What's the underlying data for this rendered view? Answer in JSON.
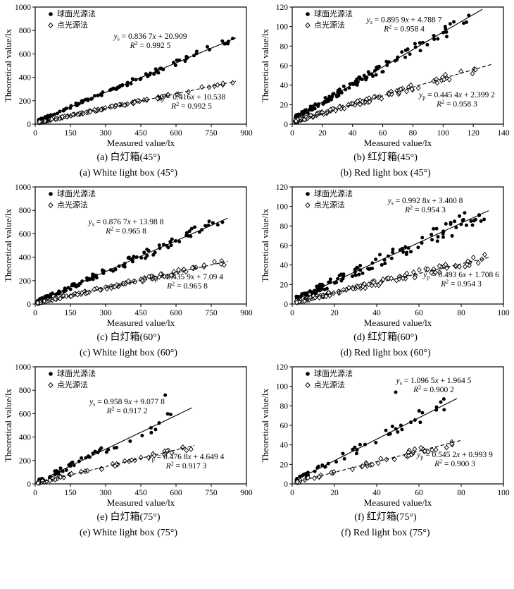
{
  "figure": {
    "xlabel": "Measured value/lx",
    "ylabel": "Theoretical value/lx",
    "legend": [
      {
        "marker": "circle-filled",
        "label": "球面光源法"
      },
      {
        "marker": "diamond-open",
        "label": "点光源法"
      }
    ],
    "colors": {
      "fg": "#000000",
      "bg": "#ffffff"
    }
  },
  "chart_data": [
    {
      "id": "a",
      "type": "scatter",
      "caption_cn": "(a) 白灯箱(45°)",
      "caption_en": "(a) White light box (45°)",
      "xlabel": "Measured value/lx",
      "ylabel": "Theoretical value/lx",
      "xlim": [
        0,
        900
      ],
      "xticks": [
        0,
        150,
        300,
        450,
        600,
        750,
        900
      ],
      "ylim": [
        0,
        1000
      ],
      "yticks": [
        0,
        200,
        400,
        600,
        800,
        1000
      ],
      "series": [
        {
          "name": "球面光源法",
          "marker": "circle",
          "line": "solid",
          "fit_slope": 0.8367,
          "fit_intercept": 20.909,
          "r2": 0.9925,
          "eq": {
            "sub": "s",
            "slope": "0.836 7",
            "intercept": "20.909",
            "r2": "0.992 5",
            "fx": 0.545,
            "fy": 0.27
          },
          "line_range": [
            28,
            855
          ],
          "sim": {
            "seed": 11,
            "n": 110,
            "xmin": 15,
            "xmax": 845,
            "pow": 1.7,
            "noise": 30
          }
        },
        {
          "name": "点光源法",
          "marker": "diamond",
          "line": "dashed",
          "fit_slope": 0.416,
          "fit_intercept": 10.538,
          "r2": 0.9925,
          "eq": {
            "sub": "p",
            "slope": "0.416",
            "intercept": "10.538",
            "r2": "0.992 5",
            "fx": 0.74,
            "fy": 0.79
          },
          "line_range": [
            28,
            855
          ],
          "sim": {
            "seed": 12,
            "n": 110,
            "xmin": 15,
            "xmax": 845,
            "pow": 1.7,
            "noise": 14
          }
        }
      ]
    },
    {
      "id": "b",
      "type": "scatter",
      "caption_cn": "(b) 红灯箱(45°)",
      "caption_en": "(b) Red light box (45°)",
      "xlabel": "Measured value/lx",
      "ylabel": "Theoretical value/lx",
      "xlim": [
        0,
        140
      ],
      "xticks": [
        0,
        20,
        40,
        60,
        80,
        100,
        120,
        140
      ],
      "ylim": [
        0,
        120
      ],
      "yticks": [
        0,
        20,
        40,
        60,
        80,
        100,
        120
      ],
      "series": [
        {
          "name": "球面光源法",
          "marker": "circle",
          "line": "solid",
          "fit_slope": 0.8959,
          "fit_intercept": 4.7887,
          "r2": 0.9584,
          "eq": {
            "sub": "s",
            "slope": "0.895 9",
            "intercept": "4.788 7",
            "r2": "0.958 4",
            "fx": 0.53,
            "fy": 0.13
          },
          "line_range": [
            6,
            126
          ],
          "sim": {
            "seed": 21,
            "n": 130,
            "xmin": 2,
            "xmax": 122,
            "pow": 1.9,
            "noise": 8
          }
        },
        {
          "name": "点光源法",
          "marker": "diamond",
          "line": "dashed",
          "fit_slope": 0.4454,
          "fit_intercept": 2.3992,
          "r2": 0.9583,
          "eq": {
            "sub": "p",
            "slope": "0.445 4",
            "intercept": "2.399 2",
            "r2": "0.958 3",
            "fx": 0.78,
            "fy": 0.77
          },
          "line_range": [
            4,
            132
          ],
          "sim": {
            "seed": 22,
            "n": 130,
            "xmin": 2,
            "xmax": 122,
            "pow": 1.9,
            "noise": 4.5
          }
        }
      ]
    },
    {
      "id": "c",
      "type": "scatter",
      "caption_cn": "(c) 白灯箱(60°)",
      "caption_en": "(c) White light box (60°)",
      "xlabel": "Measured value/lx",
      "ylabel": "Theoretical value/lx",
      "xlim": [
        0,
        900
      ],
      "xticks": [
        0,
        150,
        300,
        450,
        600,
        750,
        900
      ],
      "ylim": [
        0,
        1000
      ],
      "yticks": [
        0,
        200,
        400,
        600,
        800,
        1000
      ],
      "series": [
        {
          "name": "球面光源法",
          "marker": "circle",
          "line": "solid",
          "fit_slope": 0.8767,
          "fit_intercept": 13.988,
          "r2": 0.9658,
          "eq": {
            "sub": "s",
            "slope": "0.876 7",
            "intercept": "13.98 8",
            "r2": "0.965 8",
            "fx": 0.43,
            "fy": 0.32
          },
          "line_range": [
            18,
            820
          ],
          "sim": {
            "seed": 31,
            "n": 115,
            "xmin": 10,
            "xmax": 815,
            "pow": 1.7,
            "noise": 55
          }
        },
        {
          "name": "点光源法",
          "marker": "diamond",
          "line": "dashed",
          "fit_slope": 0.4359,
          "fit_intercept": 7.094,
          "r2": 0.9658,
          "eq": {
            "sub": "p",
            "slope": "0.435 9",
            "intercept": "7.09 4",
            "r2": "0.965 8",
            "fx": 0.72,
            "fy": 0.79
          },
          "line_range": [
            18,
            820
          ],
          "sim": {
            "seed": 32,
            "n": 115,
            "xmin": 10,
            "xmax": 815,
            "pow": 1.7,
            "noise": 25
          }
        }
      ]
    },
    {
      "id": "d",
      "type": "scatter",
      "caption_cn": "(d) 红灯箱(60°)",
      "caption_en": "(d) Red light box (60°)",
      "xlabel": "Measured value/lx",
      "ylabel": "Theoretical value/lx",
      "xlim": [
        0,
        100
      ],
      "xticks": [
        0,
        20,
        40,
        60,
        80,
        100
      ],
      "ylim": [
        0,
        120
      ],
      "yticks": [
        0,
        20,
        40,
        60,
        80,
        100,
        120
      ],
      "series": [
        {
          "name": "球面光源法",
          "marker": "circle",
          "line": "solid",
          "fit_slope": 0.9928,
          "fit_intercept": 3.4008,
          "r2": 0.9543,
          "eq": {
            "sub": "s",
            "slope": "0.992 8",
            "intercept": "3.400 8",
            "r2": "0.954 3",
            "fx": 0.63,
            "fy": 0.14
          },
          "line_range": [
            3,
            93
          ],
          "sim": {
            "seed": 41,
            "n": 120,
            "xmin": 2,
            "xmax": 92,
            "pow": 1.6,
            "noise": 11
          }
        },
        {
          "name": "点光源法",
          "marker": "diamond",
          "line": "dashed",
          "fit_slope": 0.4936,
          "fit_intercept": 1.7086,
          "r2": 0.9543,
          "eq": {
            "sub": "p",
            "slope": "0.493 6",
            "intercept": "1.708 6",
            "r2": "0.954 3",
            "fx": 0.8,
            "fy": 0.77
          },
          "line_range": [
            3,
            93
          ],
          "sim": {
            "seed": 42,
            "n": 120,
            "xmin": 2,
            "xmax": 92,
            "pow": 1.6,
            "noise": 5
          }
        }
      ]
    },
    {
      "id": "e",
      "type": "scatter",
      "caption_cn": "(e) 白灯箱(75°)",
      "caption_en": "(e) White light box (75°)",
      "xlabel": "Measured value/lx",
      "ylabel": "Theoretical value/lx",
      "xlim": [
        0,
        900
      ],
      "xticks": [
        0,
        150,
        300,
        450,
        600,
        750,
        900
      ],
      "ylim": [
        0,
        1000
      ],
      "yticks": [
        0,
        200,
        400,
        600,
        800,
        1000
      ],
      "series": [
        {
          "name": "球面光源法",
          "marker": "circle",
          "line": "solid",
          "fit_slope": 0.9589,
          "fit_intercept": 9.0778,
          "r2": 0.9172,
          "eq": {
            "sub": "s",
            "slope": "0.958 9",
            "intercept": "9.077 8",
            "r2": "0.917 2",
            "fx": 0.435,
            "fy": 0.32
          },
          "line_range": [
            55,
            668
          ],
          "extra": [
            [
              554,
              758
            ]
          ],
          "sim": {
            "seed": 51,
            "n": 52,
            "xmin": 12,
            "xmax": 660,
            "pow": 1.9,
            "noise": 58
          }
        },
        {
          "name": "点光源法",
          "marker": "diamond",
          "line": "dashed",
          "fit_slope": 0.4768,
          "fit_intercept": 4.6494,
          "r2": 0.9173,
          "eq": {
            "sub": "p",
            "slope": "0.476 8",
            "intercept": "4.649 4",
            "r2": "0.917 3",
            "fx": 0.715,
            "fy": 0.79
          },
          "line_range": [
            20,
            678
          ],
          "sim": {
            "seed": 52,
            "n": 55,
            "xmin": 12,
            "xmax": 672,
            "pow": 1.9,
            "noise": 26
          }
        }
      ]
    },
    {
      "id": "f",
      "type": "scatter",
      "caption_cn": "(f) 红灯箱(75°)",
      "caption_en": "(f) Red light box (75°)",
      "xlabel": "Measured value/lx",
      "ylabel": "Theoretical value/lx",
      "xlim": [
        0,
        100
      ],
      "xticks": [
        0,
        20,
        40,
        60,
        80,
        100
      ],
      "ylim": [
        0,
        120
      ],
      "yticks": [
        0,
        20,
        40,
        60,
        80,
        100,
        120
      ],
      "series": [
        {
          "name": "球面光源法",
          "marker": "circle",
          "line": "solid",
          "fit_slope": 1.0965,
          "fit_intercept": 1.9645,
          "r2": 0.9002,
          "eq": {
            "sub": "s",
            "slope": "1.096 5",
            "intercept": "1.964 5",
            "r2": "0.900 2",
            "fx": 0.67,
            "fy": 0.14
          },
          "line_range": [
            4,
            78
          ],
          "extra": [
            [
              49,
              94
            ]
          ],
          "sim": {
            "seed": 61,
            "n": 48,
            "xmin": 2,
            "xmax": 76,
            "pow": 1.7,
            "noise": 8.5
          }
        },
        {
          "name": "点光源法",
          "marker": "diamond",
          "line": "dashed",
          "fit_slope": 0.5452,
          "fit_intercept": 0.9939,
          "r2": 0.9003,
          "eq": {
            "sub": "p",
            "slope": "0.545 2",
            "intercept": "0.993 9",
            "r2": "0.900 3",
            "fx": 0.77,
            "fy": 0.77
          },
          "line_range": [
            3,
            80
          ],
          "sim": {
            "seed": 62,
            "n": 50,
            "xmin": 2,
            "xmax": 78,
            "pow": 1.7,
            "noise": 4
          }
        }
      ]
    }
  ]
}
